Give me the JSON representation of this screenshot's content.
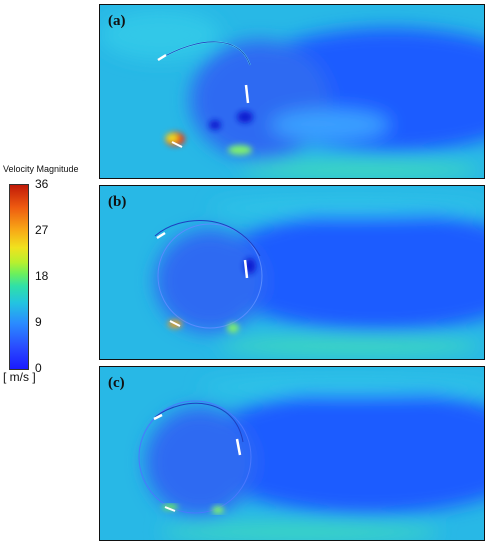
{
  "legend": {
    "title": "Velocity Magnitude",
    "unit": "[ m/s ]",
    "ticks": [
      "36",
      "27",
      "18",
      "9",
      "0"
    ],
    "colormap_stops": [
      "#1a1aff",
      "#2a8cff",
      "#23c4e0",
      "#6ef05a",
      "#f0e21e",
      "#f8a616",
      "#c01a08"
    ]
  },
  "panels": [
    {
      "label": "(a)"
    },
    {
      "label": "(b)"
    },
    {
      "label": "(c)"
    }
  ],
  "colors": {
    "freestream": "#28b8e6",
    "wake": "#1e5cff",
    "rotor_interior": "#2f6bf2",
    "high_speed": "#e83a12"
  }
}
